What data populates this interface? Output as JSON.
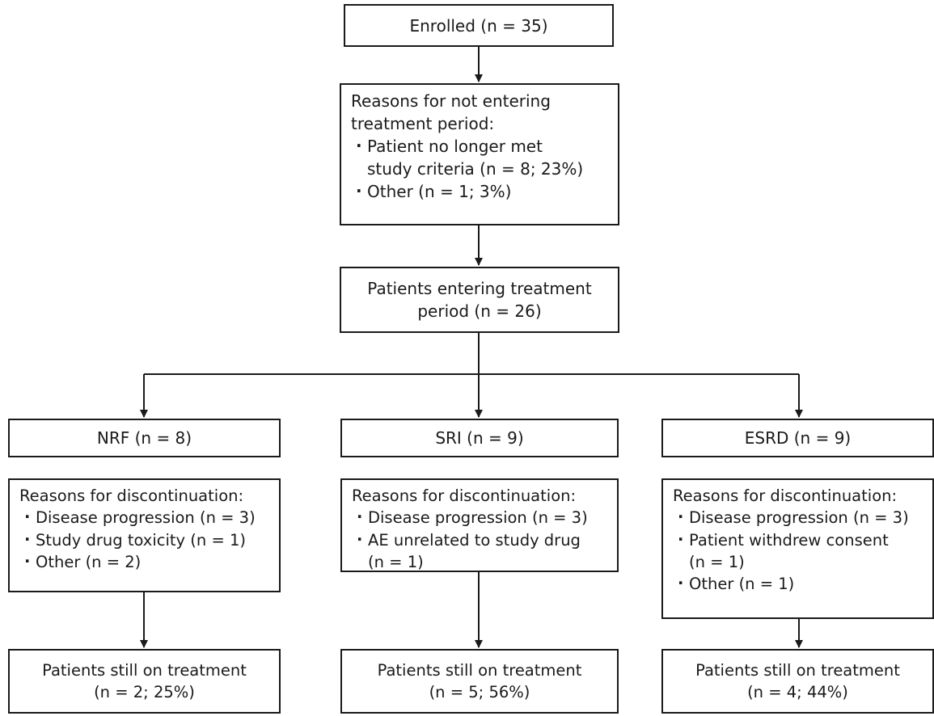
{
  "flowchart": {
    "enrolled": {
      "lines": [
        "Enrolled (n = 35)"
      ]
    },
    "not_entering": {
      "heading": [
        "Reasons for not entering",
        "treatment period:"
      ],
      "items": [
        [
          "Patient no longer met",
          "study criteria (n = 8; 23%)"
        ],
        [
          "Other (n = 1; 3%)"
        ]
      ]
    },
    "entering": {
      "lines": [
        "Patients entering treatment",
        "period (n = 26)"
      ]
    },
    "groups": [
      {
        "label": "NRF (n = 8)",
        "discontinuation": {
          "heading": "Reasons for discontinuation:",
          "items": [
            [
              "Disease progression (n = 3)"
            ],
            [
              "Study drug toxicity (n = 1)"
            ],
            [
              "Other (n = 2)"
            ]
          ]
        },
        "still_on": [
          "Patients still on treatment",
          "(n = 2; 25%)"
        ]
      },
      {
        "label": "SRI (n = 9)",
        "discontinuation": {
          "heading": "Reasons for discontinuation:",
          "items": [
            [
              "Disease progression (n = 3)"
            ],
            [
              "AE unrelated to study drug",
              "(n = 1)"
            ]
          ]
        },
        "still_on": [
          "Patients still on treatment",
          "(n = 5; 56%)"
        ]
      },
      {
        "label": "ESRD (n = 9)",
        "discontinuation": {
          "heading": "Reasons for discontinuation:",
          "items": [
            [
              "Disease progression (n = 3)"
            ],
            [
              "Patient withdrew consent",
              "(n = 1)"
            ],
            [
              "Other (n = 1)"
            ]
          ]
        },
        "still_on": [
          "Patients still on treatment",
          "(n = 4; 44%)"
        ]
      }
    ]
  }
}
